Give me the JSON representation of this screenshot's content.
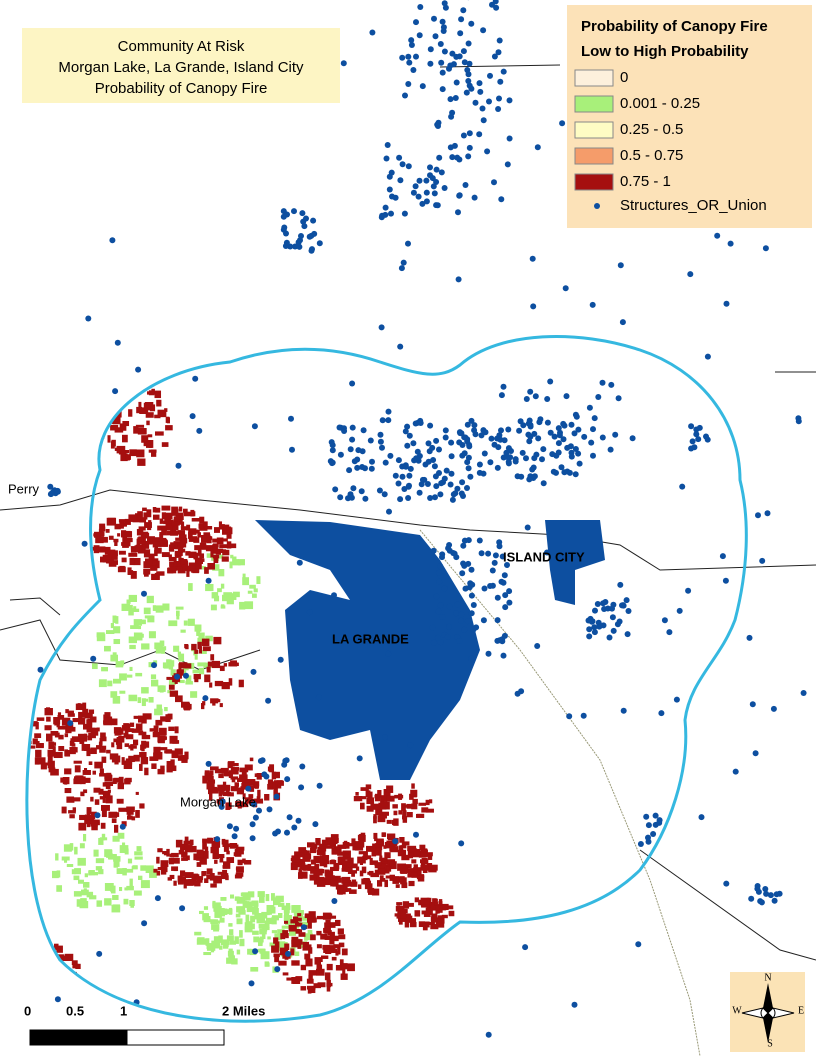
{
  "title": {
    "lines": [
      "Community At Risk",
      "Morgan Lake, La Grande, Island City",
      "Probability of Canopy Fire"
    ]
  },
  "legend": {
    "title": [
      "Probability of Canopy Fire",
      "Low to High Probability"
    ],
    "items": [
      {
        "label": "0",
        "color": "#fdf0dc"
      },
      {
        "label": "0.001 - 0.25",
        "color": "#a8f07a"
      },
      {
        "label": "0.25 - 0.5",
        "color": "#fefcc4"
      },
      {
        "label": "0.5 - 0.75",
        "color": "#f59c6a"
      },
      {
        "label": "0.75 - 1",
        "color": "#a50f0f"
      }
    ],
    "points": {
      "label": "Structures_OR_Union",
      "color": "#0d4fa0"
    }
  },
  "places": [
    "Perry",
    "LA GRANDE",
    "ISLAND CITY",
    "Morgan Lake"
  ],
  "scale_bar": {
    "labels": [
      "0",
      "0.5",
      "1",
      "2 Miles"
    ]
  },
  "compass": {
    "labels": [
      "N",
      "E",
      "S",
      "W"
    ]
  }
}
